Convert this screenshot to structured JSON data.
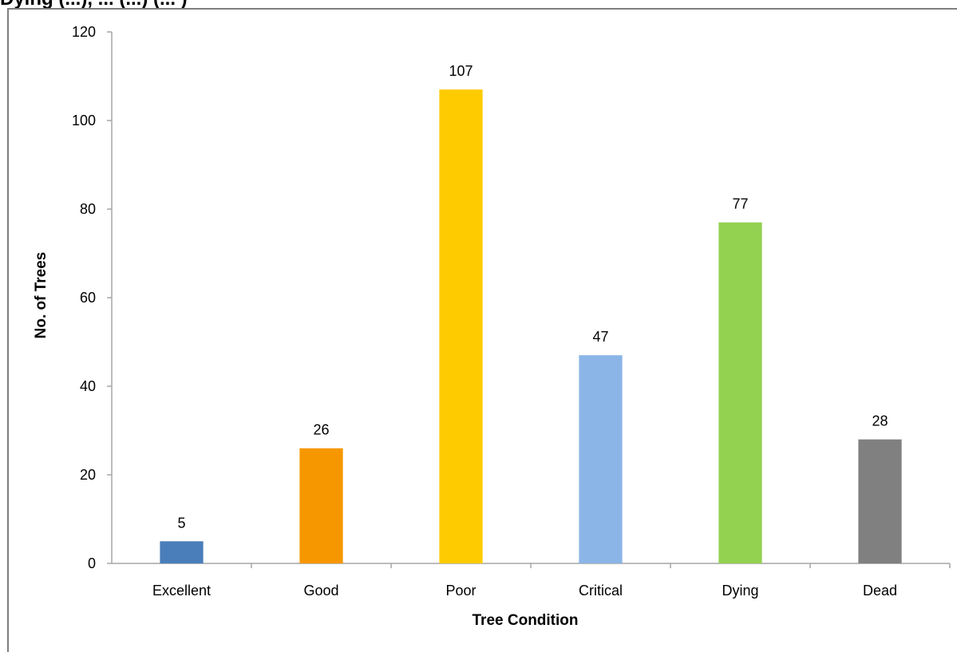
{
  "header": {
    "partial_caption": "Dying (...), ... (...) (... )"
  },
  "chart_data": {
    "type": "bar",
    "categories": [
      "Excellent",
      "Good",
      "Poor",
      "Critical",
      "Dying",
      "Dead"
    ],
    "values": [
      5,
      26,
      107,
      47,
      77,
      28
    ],
    "colors": [
      "#4a7ebb",
      "#f79700",
      "#fecb00",
      "#8bb5e6",
      "#93d150",
      "#808080"
    ],
    "title": "",
    "xlabel": "Tree Condition",
    "ylabel": "No. of Trees",
    "ylim": [
      0,
      120
    ],
    "yticks": [
      0,
      20,
      40,
      60,
      80,
      100,
      120
    ],
    "data_labels": true,
    "grid": false,
    "legend": "none"
  }
}
